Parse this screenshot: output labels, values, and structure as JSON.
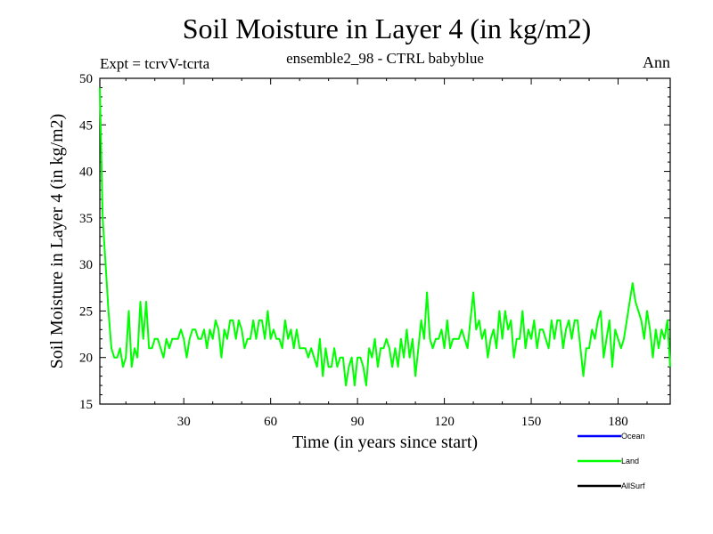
{
  "header": {
    "title": "Soil Moisture in Layer 4 (in kg/m2)",
    "subtitle": "ensemble2_98 - CTRL babyblue",
    "expt": "Expt = tcrvV-tcrta",
    "period": "Ann"
  },
  "chart_data": {
    "type": "line",
    "title": "Soil Moisture in Layer 4 (in kg/m2)",
    "xlabel": "Time (in years since start)",
    "ylabel": "Soil Moisture in Layer 4 (in kg/m2)",
    "xlim": [
      1,
      198
    ],
    "ylim": [
      15,
      50
    ],
    "xticks": [
      30,
      60,
      90,
      120,
      150,
      180
    ],
    "yticks": [
      15,
      20,
      25,
      30,
      35,
      40,
      45,
      50
    ],
    "grid": false,
    "legend_position": "bottom-right",
    "legend": [
      {
        "name": "Ocean",
        "color": "#0000ff"
      },
      {
        "name": "Land",
        "color": "#00ff00"
      },
      {
        "name": "AllSurf",
        "color": "#000000"
      }
    ],
    "series": [
      {
        "name": "Land",
        "color": "#00ff00",
        "x": [
          1,
          2,
          3,
          4,
          5,
          6,
          7,
          8,
          9,
          10,
          11,
          12,
          13,
          14,
          15,
          16,
          17,
          18,
          19,
          20,
          21,
          22,
          23,
          24,
          25,
          26,
          27,
          28,
          29,
          30,
          31,
          32,
          33,
          34,
          35,
          36,
          37,
          38,
          39,
          40,
          41,
          42,
          43,
          44,
          45,
          46,
          47,
          48,
          49,
          50,
          51,
          52,
          53,
          54,
          55,
          56,
          57,
          58,
          59,
          60,
          61,
          62,
          63,
          64,
          65,
          66,
          67,
          68,
          69,
          70,
          71,
          72,
          73,
          74,
          75,
          76,
          77,
          78,
          79,
          80,
          81,
          82,
          83,
          84,
          85,
          86,
          87,
          88,
          89,
          90,
          91,
          92,
          93,
          94,
          95,
          96,
          97,
          98,
          99,
          100,
          101,
          102,
          103,
          104,
          105,
          106,
          107,
          108,
          109,
          110,
          111,
          112,
          113,
          114,
          115,
          116,
          117,
          118,
          119,
          120,
          121,
          122,
          123,
          124,
          125,
          126,
          127,
          128,
          129,
          130,
          131,
          132,
          133,
          134,
          135,
          136,
          137,
          138,
          139,
          140,
          141,
          142,
          143,
          144,
          145,
          146,
          147,
          148,
          149,
          150,
          151,
          152,
          153,
          154,
          155,
          156,
          157,
          158,
          159,
          160,
          161,
          162,
          163,
          164,
          165,
          166,
          167,
          168,
          169,
          170,
          171,
          172,
          173,
          174,
          175,
          176,
          177,
          178,
          179,
          180,
          181,
          182,
          183,
          184,
          185,
          186,
          187,
          188,
          189,
          190,
          191,
          192,
          193,
          194,
          195,
          196,
          197,
          198
        ],
        "values": [
          49,
          35,
          30,
          25,
          21,
          20,
          20,
          21,
          19,
          20,
          25,
          19,
          21,
          20,
          26,
          22,
          26,
          21,
          21,
          22,
          22,
          21,
          20,
          22,
          21,
          22,
          22,
          22,
          23,
          22,
          20,
          22,
          23,
          23,
          22,
          22,
          23,
          21,
          23,
          22,
          24,
          23,
          20,
          23,
          22,
          24,
          24,
          22,
          24,
          23,
          21,
          22,
          22,
          24,
          22,
          24,
          24,
          22,
          25,
          22,
          23,
          22,
          22,
          21,
          24,
          22,
          23,
          21,
          23,
          21,
          21,
          21,
          20,
          21,
          20,
          19,
          22,
          18,
          21,
          19,
          19,
          21,
          19,
          20,
          20,
          17,
          19,
          20,
          17,
          20,
          20,
          19,
          17,
          21,
          20,
          22,
          19,
          21,
          21,
          22,
          21,
          19,
          21,
          19,
          22,
          20,
          23,
          20,
          22,
          18,
          21,
          24,
          22,
          27,
          22,
          21,
          22,
          22,
          23,
          21,
          24,
          21,
          22,
          22,
          22,
          23,
          22,
          21,
          24,
          27,
          23,
          24,
          22,
          23,
          20,
          22,
          23,
          21,
          25,
          22,
          25,
          23,
          24,
          20,
          22,
          22,
          25,
          21,
          23,
          22,
          24,
          21,
          23,
          23,
          22,
          21,
          24,
          22,
          24,
          24,
          21,
          23,
          24,
          22,
          24,
          24,
          21,
          18,
          21,
          21,
          23,
          22,
          24,
          25,
          20,
          22,
          24,
          19,
          23,
          22,
          21,
          22,
          24,
          26,
          28,
          26,
          25,
          24,
          22,
          25,
          23,
          20,
          23,
          21,
          23,
          22,
          24,
          19
        ]
      },
      {
        "name": "Ocean",
        "color": "#0000ff",
        "x": [],
        "values": []
      },
      {
        "name": "AllSurf",
        "color": "#000000",
        "x": [],
        "values": []
      }
    ]
  }
}
